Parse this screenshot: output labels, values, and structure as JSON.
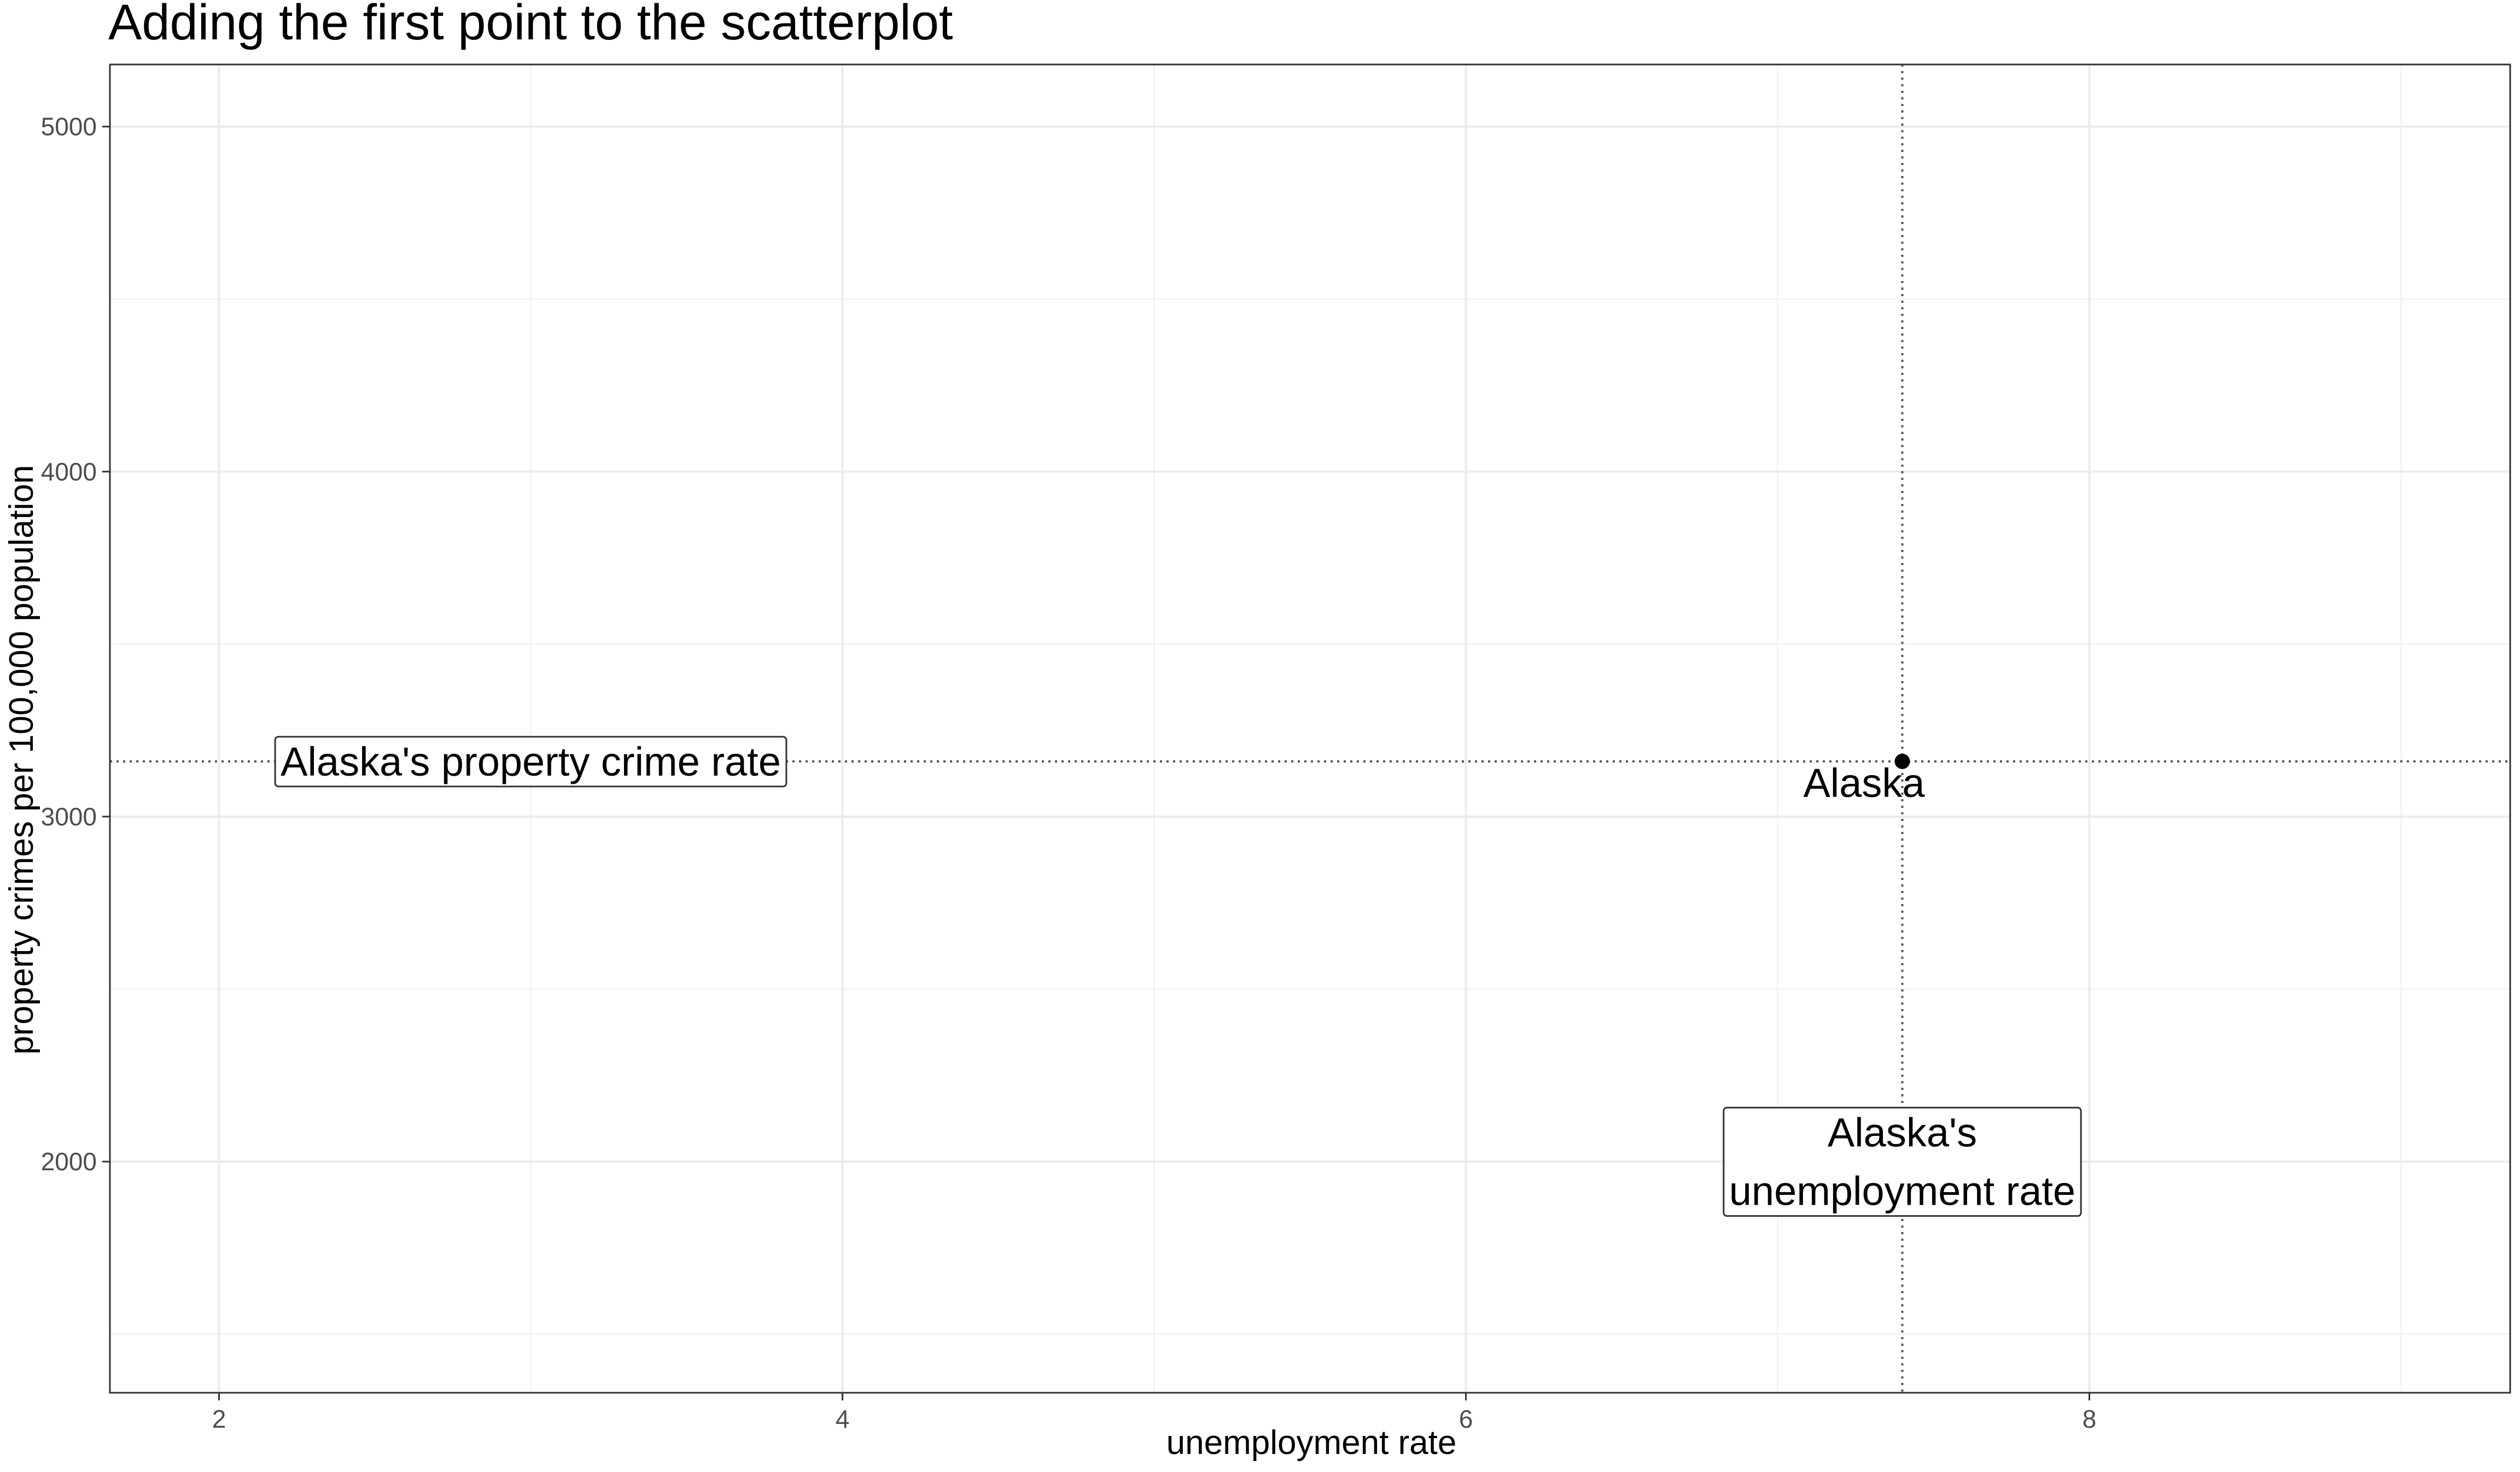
{
  "chart_data": {
    "type": "scatter",
    "title": "Adding the first point to the scatterplot",
    "xlabel": "unemployment rate",
    "ylabel": "property crimes per 100,000 population",
    "xlim": [
      1.65,
      9.35
    ],
    "ylim": [
      1330,
      5180
    ],
    "x_ticks": [
      2,
      4,
      6,
      8
    ],
    "x_tick_labels": [
      "2",
      "4",
      "6",
      "8"
    ],
    "x_minor_ticks": [
      3,
      5,
      7,
      9
    ],
    "y_ticks": [
      2000,
      3000,
      4000,
      5000
    ],
    "y_tick_labels": [
      "2000",
      "3000",
      "4000",
      "5000"
    ],
    "y_minor_ticks": [
      1500,
      2500,
      3500,
      4500
    ],
    "grid": true,
    "points": [
      {
        "label": "Alaska",
        "x": 7.4,
        "y": 3160
      }
    ],
    "reference_lines": {
      "vertical_x": 7.4,
      "horizontal_y": 3160,
      "style": "dotted"
    },
    "annotations": [
      {
        "text": "Alaska's property crime rate",
        "x": 3.0,
        "y": 3160,
        "boxed": true
      },
      {
        "text_lines": [
          "Alaska's",
          "unemployment rate"
        ],
        "x": 7.4,
        "y": 2000,
        "boxed": true
      }
    ],
    "colors": {
      "background": "#ffffff",
      "panel_border": "#333333",
      "grid_major": "#ebebeb",
      "grid_minor": "#f4f4f4",
      "point": "#000000",
      "reference_line": "#555555",
      "tick_text": "#4d4d4d",
      "text": "#000000"
    }
  }
}
